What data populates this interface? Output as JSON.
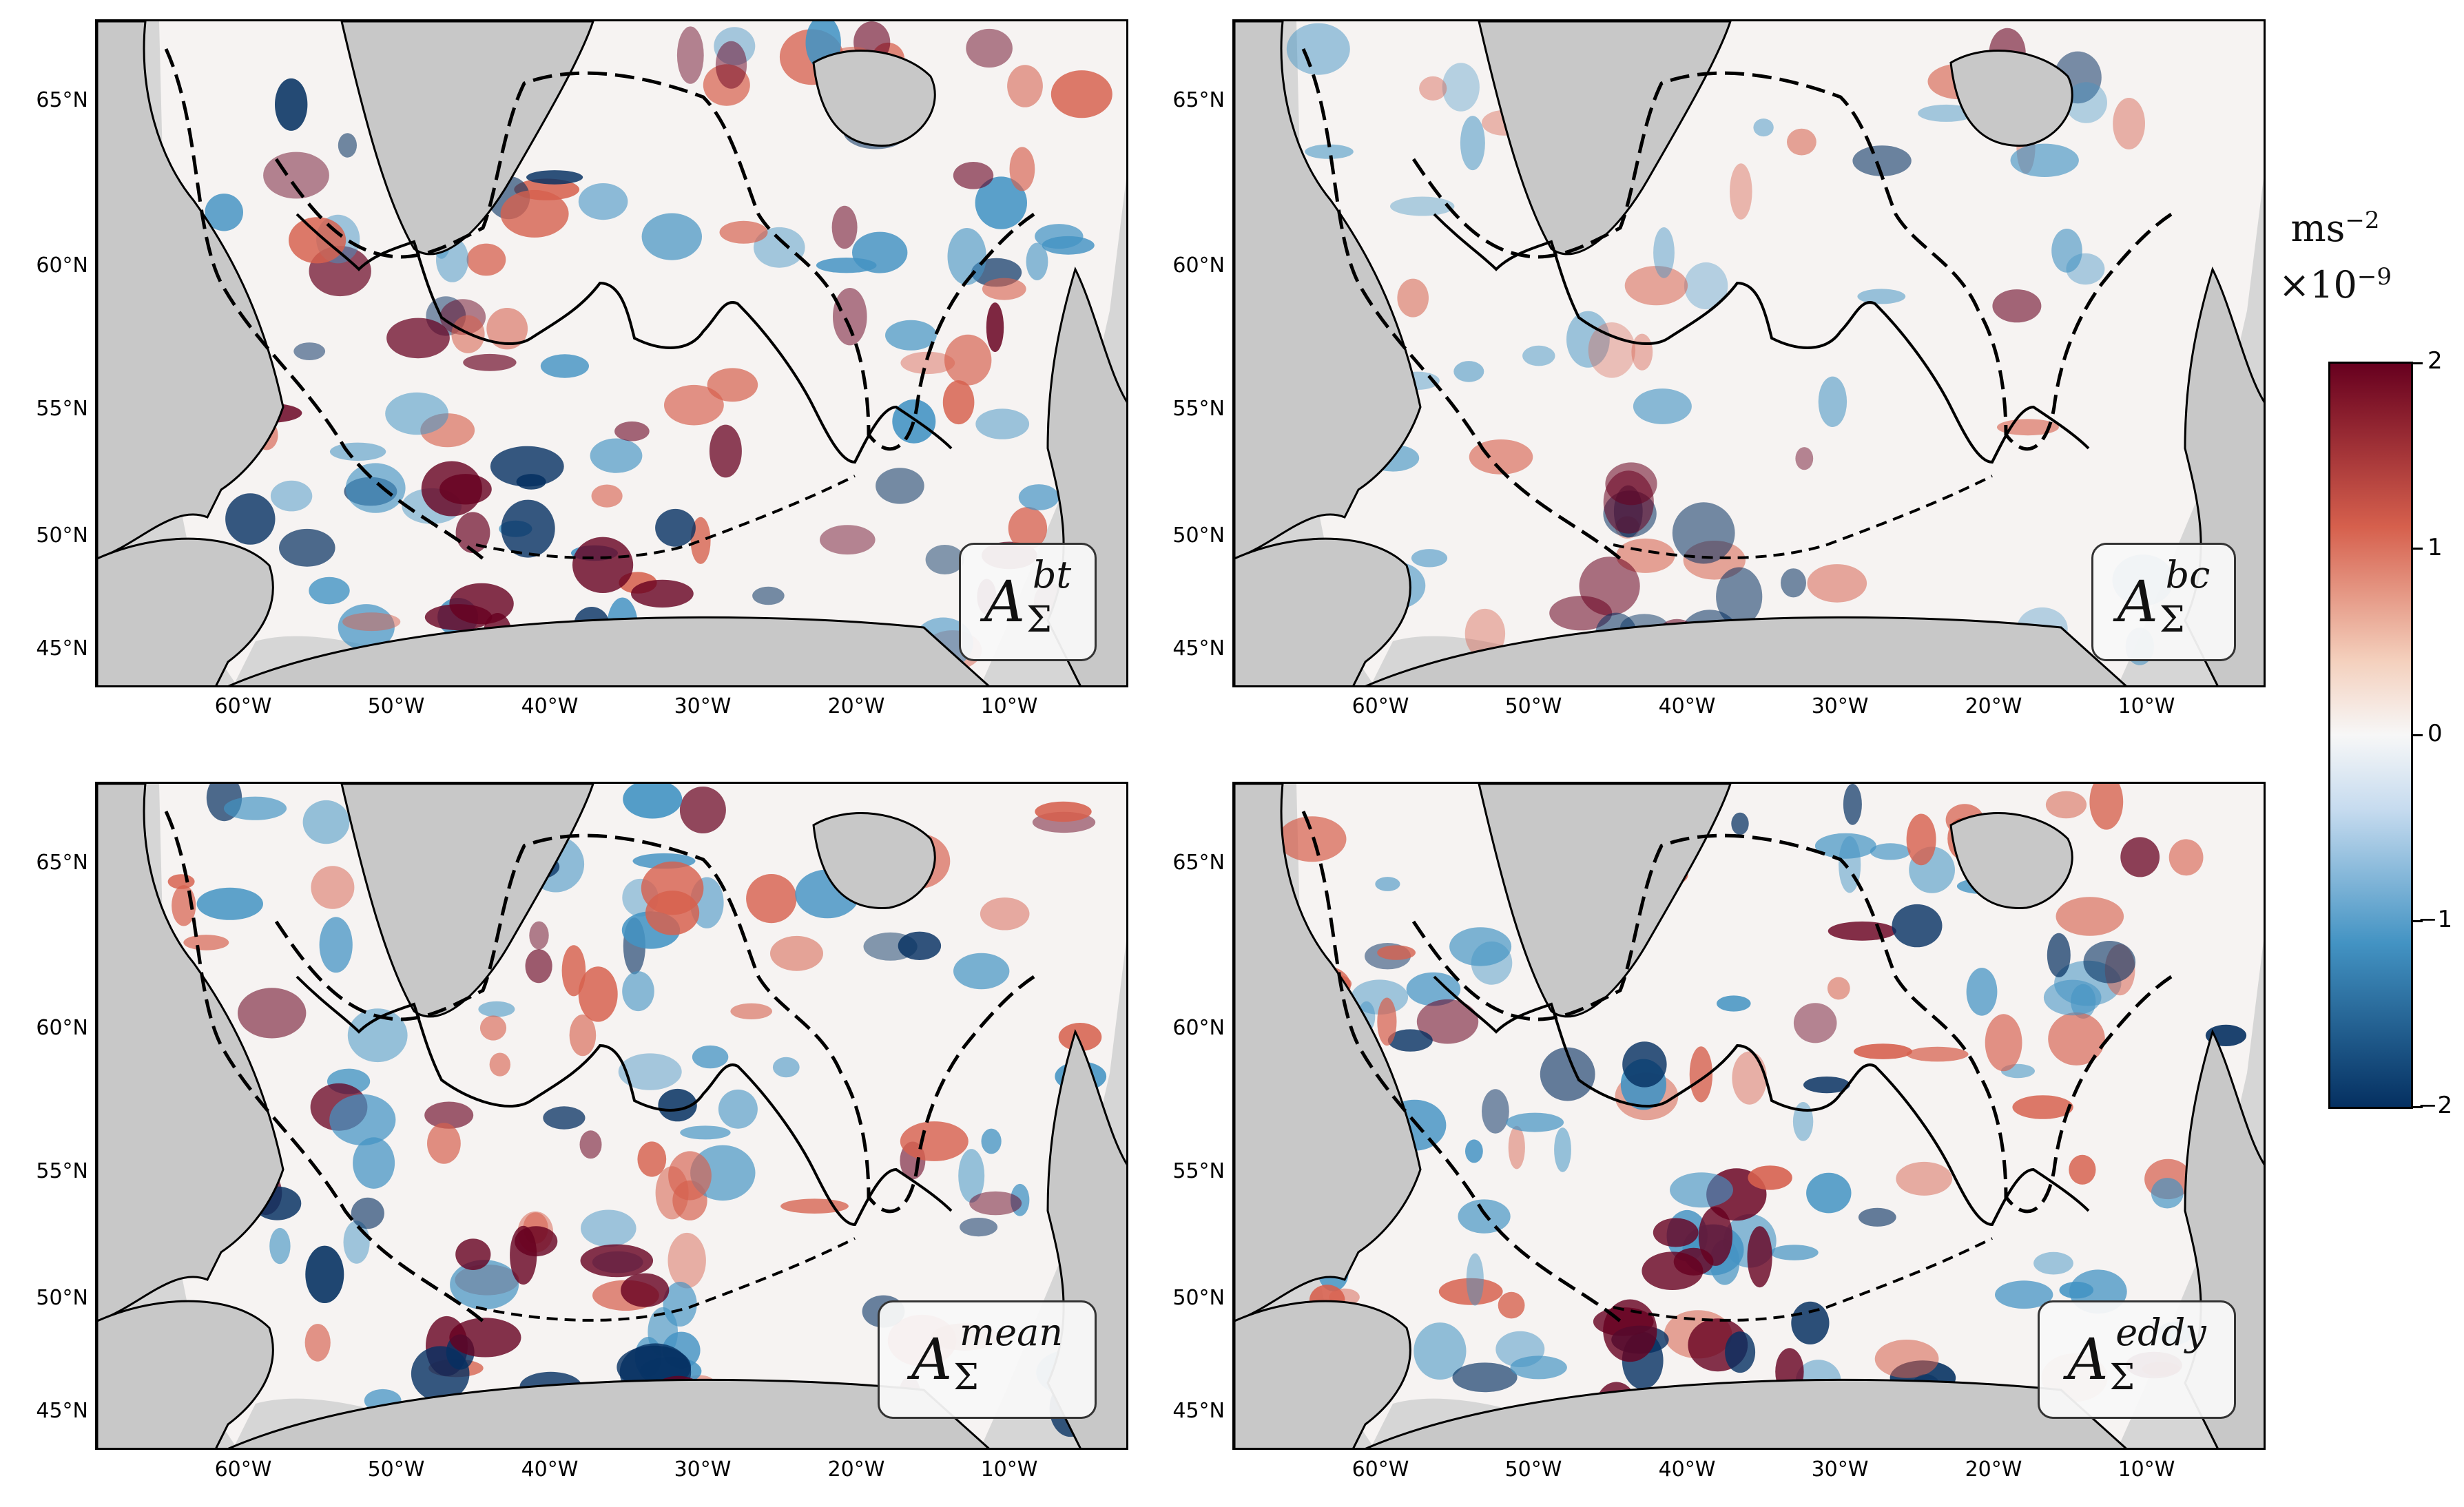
{
  "colors": {
    "land": "#c8c8c8",
    "background": "#d6d6d6",
    "ocean": "#f6f3f2",
    "positive": "#67001f",
    "positive_mid": "#d6604d",
    "negative": "#053061",
    "negative_mid": "#4393c3",
    "contour": "#000000"
  },
  "latitude_labels": [
    "65°N",
    "60°N",
    "55°N",
    "50°N",
    "45°N"
  ],
  "longitude_labels": [
    "60°W",
    "50°W",
    "40°W",
    "30°W",
    "20°W",
    "10°W"
  ],
  "panels": [
    {
      "id": "bt",
      "base": "A",
      "sub": "Σ",
      "sup": "bt"
    },
    {
      "id": "bc",
      "base": "A",
      "sub": "Σ",
      "sup": "bc"
    },
    {
      "id": "mean",
      "base": "A",
      "sub": "Σ",
      "sup": "mean"
    },
    {
      "id": "eddy",
      "base": "A",
      "sub": "Σ",
      "sup": "eddy"
    }
  ],
  "colorbar": {
    "unit_line1": "ms",
    "unit_line1_exp": "−2",
    "unit_line2": "×10",
    "unit_line2_exp": "−9",
    "ticks": [
      "2",
      "1",
      "0",
      "−1",
      "−2"
    ],
    "range": [
      -2,
      2
    ],
    "colormap": "RdBu_r"
  }
}
